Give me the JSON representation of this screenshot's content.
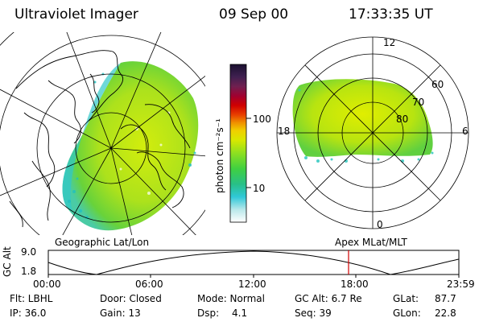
{
  "header": {
    "title": "Ultraviolet Imager",
    "date": "09 Sep 00",
    "time": "17:33:35 UT"
  },
  "left_panel": {
    "label": "Geographic Lat/Lon"
  },
  "right_panel": {
    "label": "Apex MLat/MLT",
    "mlt_labels": {
      "top": "12",
      "left": "18",
      "right": "6",
      "bottom": "0"
    },
    "lat_labels": [
      "60",
      "70",
      "80"
    ]
  },
  "colorbar": {
    "unit": "photon cm⁻²s⁻¹",
    "ticks": [
      "100",
      "10"
    ]
  },
  "altitude_plot": {
    "ylabel": "GC Alt",
    "yticks": [
      "9.0",
      "1.8"
    ],
    "xticks": [
      "00:00",
      "06:00",
      "12:00",
      "18:00",
      "23:59"
    ],
    "current_time_marker": "17:33",
    "marker_color": "#d00000"
  },
  "info": {
    "flt": "Flt: LBHL",
    "ip": "IP: 36.0",
    "door": "Door: Closed",
    "gain": "Gain: 13",
    "mode": "Mode: Normal",
    "dsp_label": "Dsp:",
    "dsp_value": "4.1",
    "gcalt": "GC Alt: 6.7 Re",
    "seq": "Seq: 39",
    "glat_label": "GLat:",
    "glat_value": "87.7",
    "glon_label": "GLon:",
    "glon_value": "22.8"
  }
}
